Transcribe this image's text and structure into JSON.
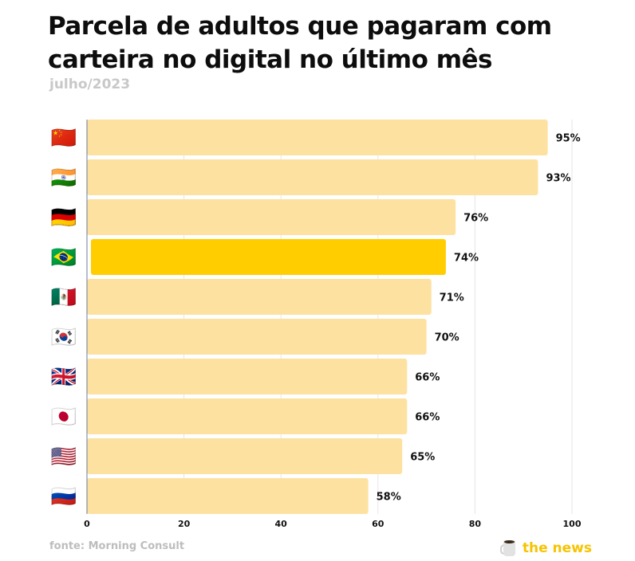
{
  "header": {
    "title": "Parcela de adultos que pagaram com carteira no digital no último mês",
    "subtitle": "julho/2023"
  },
  "footer": {
    "source": "fonte: Morning Consult",
    "brand": "the news",
    "brand_icon": "coffee-mug-icon"
  },
  "colors": {
    "bar": "#fde1a0",
    "highlight": "#ffcd00",
    "grid": "#e6e6e6",
    "axis": "#6b7a99",
    "brand": "#f6c400"
  },
  "chart_data": {
    "type": "bar",
    "orientation": "horizontal",
    "title": "Parcela de adultos que pagaram com carteira no digital no último mês",
    "subtitle": "julho/2023",
    "xlabel": "",
    "ylabel": "",
    "categories": [
      "China",
      "Índia",
      "Alemanha",
      "Brasil",
      "México",
      "Coreia do Sul",
      "Reino Unido",
      "Japão",
      "Estados Unidos",
      "Rússia"
    ],
    "flags": [
      "🇨🇳",
      "🇮🇳",
      "🇩🇪",
      "🇧🇷",
      "🇲🇽",
      "🇰🇷",
      "🇬🇧",
      "🇯🇵",
      "🇺🇸",
      "🇷🇺"
    ],
    "values": [
      95,
      93,
      76,
      74,
      71,
      70,
      66,
      66,
      65,
      58
    ],
    "value_labels": [
      "95%",
      "93%",
      "76%",
      "74%",
      "71%",
      "70%",
      "66%",
      "66%",
      "65%",
      "58%"
    ],
    "highlight": "Brasil",
    "xlim": [
      0,
      100
    ],
    "xticks": [
      0,
      20,
      40,
      60,
      80,
      100
    ],
    "xtick_labels": [
      "0",
      "20",
      "40",
      "60",
      "80",
      "100"
    ],
    "grid": true,
    "legend": "none",
    "source": "fonte: Morning Consult"
  }
}
